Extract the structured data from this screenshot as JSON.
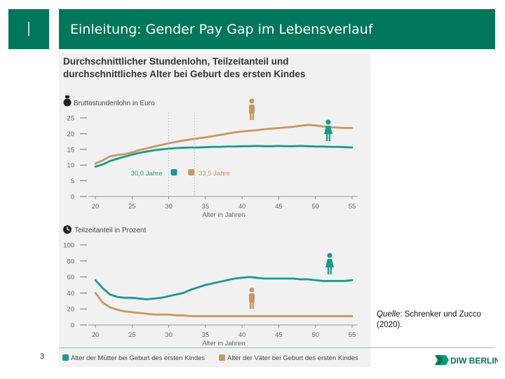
{
  "header": {
    "section_number": "I",
    "title": "Einleitung: Gender Pay Gap im Lebensverlauf"
  },
  "figure": {
    "title_line1": "Durchschnittlicher Stundenlohn, Teilzeitanteil und",
    "title_line2": "durchschnittliches Alter bei Geburt des ersten Kindes",
    "legend_mothers": "Alter der Mütter bei Geburt des ersten Kindes",
    "legend_fathers": "Alter der Väter bei Geburt des ersten Kindes"
  },
  "source": {
    "label": "Quelle",
    "text": ": Schrenker und Zucco (2020)."
  },
  "footer": {
    "page_number": "3",
    "logo_text": "DIW BERLIN"
  },
  "colors": {
    "brand": "#00775a",
    "women": "#1a9a88",
    "men": "#c99663",
    "panel": "#f1f1f1"
  },
  "chart_data": [
    {
      "type": "line",
      "title": "Bruttostundenlohn in Euro",
      "xlabel": "Alter in Jahren",
      "ylabel": "Bruttostundenlohn in Euro",
      "xlim": [
        20,
        55
      ],
      "ylim": [
        0,
        25
      ],
      "x_ticks": [
        20,
        25,
        30,
        35,
        40,
        45,
        50,
        55
      ],
      "y_ticks": [
        0,
        5,
        10,
        15,
        20,
        25
      ],
      "x": [
        20,
        21,
        22,
        23,
        24,
        25,
        26,
        27,
        28,
        29,
        30,
        31,
        32,
        33,
        34,
        35,
        36,
        37,
        38,
        39,
        40,
        41,
        42,
        43,
        44,
        45,
        46,
        47,
        48,
        49,
        50,
        51,
        52,
        53,
        54,
        55
      ],
      "series": [
        {
          "name": "Männer",
          "color": "#c99663",
          "values": [
            10.5,
            11.5,
            12.8,
            13.2,
            13.5,
            14,
            14.8,
            15.3,
            15.9,
            16.4,
            16.9,
            17.4,
            17.8,
            18.2,
            18.5,
            18.8,
            19.2,
            19.6,
            20,
            20.4,
            20.7,
            20.9,
            21.1,
            21.4,
            21.6,
            21.8,
            22,
            22.2,
            22.5,
            22.8,
            22.6,
            22.3,
            22.1,
            21.9,
            21.8,
            21.8
          ]
        },
        {
          "name": "Frauen",
          "color": "#1a9a88",
          "values": [
            9.5,
            10.2,
            11.3,
            12,
            12.7,
            13.3,
            13.9,
            14.3,
            14.7,
            15,
            15.2,
            15.4,
            15.5,
            15.6,
            15.6,
            15.7,
            15.8,
            15.8,
            15.9,
            15.9,
            16,
            16,
            16.1,
            16,
            16,
            16.1,
            16,
            16,
            16.1,
            16,
            15.9,
            15.9,
            15.8,
            15.8,
            15.7,
            15.6
          ]
        }
      ],
      "annotations": [
        {
          "text": "30,0 Jahre",
          "x": 30.0,
          "series": "Frauen"
        },
        {
          "text": "33,5 Jahre",
          "x": 33.5,
          "series": "Männer"
        }
      ]
    },
    {
      "type": "line",
      "title": "Teilzeitanteil in Prozent",
      "xlabel": "Alter in Jahren",
      "ylabel": "Teilzeitanteil in Prozent",
      "xlim": [
        20,
        55
      ],
      "ylim": [
        0,
        100
      ],
      "x_ticks": [
        20,
        25,
        30,
        35,
        40,
        45,
        50,
        55
      ],
      "y_ticks": [
        0,
        20,
        40,
        60,
        80,
        100
      ],
      "x": [
        20,
        21,
        22,
        23,
        24,
        25,
        26,
        27,
        28,
        29,
        30,
        31,
        32,
        33,
        34,
        35,
        36,
        37,
        38,
        39,
        40,
        41,
        42,
        43,
        44,
        45,
        46,
        47,
        48,
        49,
        50,
        51,
        52,
        53,
        54,
        55
      ],
      "series": [
        {
          "name": "Frauen",
          "color": "#1a9a88",
          "values": [
            56,
            46,
            38,
            35,
            34,
            34,
            33,
            32,
            33,
            34,
            36,
            38,
            40,
            44,
            47,
            50,
            52,
            54,
            56,
            58,
            59,
            60,
            59,
            58,
            58,
            58,
            58,
            58,
            57,
            57,
            56,
            55,
            55,
            55,
            55,
            56
          ]
        },
        {
          "name": "Männer",
          "color": "#c99663",
          "values": [
            40,
            28,
            22,
            19,
            17,
            16,
            15,
            14,
            13,
            13,
            13,
            12,
            12,
            11,
            11,
            11,
            11,
            11,
            11,
            11,
            11,
            11,
            11,
            11,
            11,
            11,
            11,
            11,
            11,
            11,
            11,
            11,
            11,
            11,
            11,
            11
          ]
        }
      ]
    }
  ]
}
